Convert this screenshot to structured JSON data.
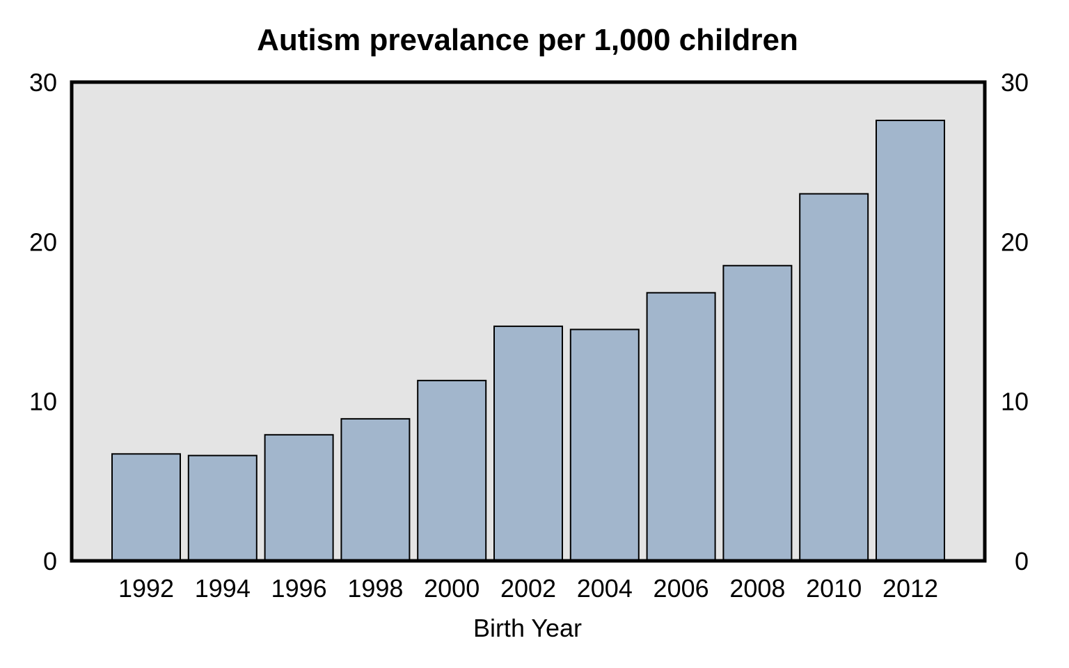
{
  "chart_data": {
    "type": "bar",
    "title": "Autism prevalance per 1,000 children",
    "xlabel": "Birth Year",
    "ylabel": "",
    "categories": [
      "1992",
      "1994",
      "1996",
      "1998",
      "2000",
      "2002",
      "2004",
      "2006",
      "2008",
      "2010",
      "2012"
    ],
    "values": [
      6.7,
      6.6,
      7.9,
      8.9,
      11.3,
      14.7,
      14.5,
      16.8,
      18.5,
      23.0,
      27.6
    ],
    "ylim": [
      0,
      30
    ],
    "yticks": [
      "0",
      "10",
      "20",
      "30"
    ],
    "y_axis_sides": [
      "left",
      "right"
    ],
    "grid": false,
    "legend": "none",
    "colors": {
      "bar_fill": "#a2b6cc",
      "bar_stroke": "#000000",
      "plot_background": "#e4e4e4",
      "frame": "#000000"
    }
  }
}
